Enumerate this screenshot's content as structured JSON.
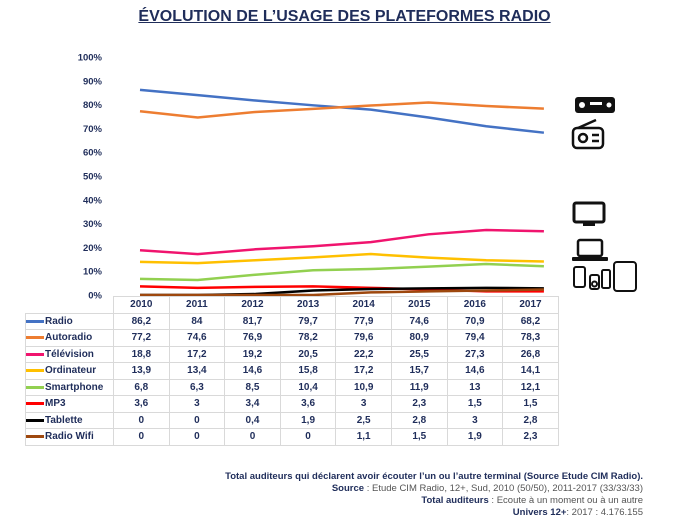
{
  "title": "ÉVOLUTION DE L’USAGE DES PLATEFORMES RADIO",
  "chart_data": {
    "type": "line",
    "title": "ÉVOLUTION DE L’USAGE DES PLATEFORMES RADIO",
    "categories": [
      "2010",
      "2011",
      "2012",
      "2013",
      "2014",
      "2015",
      "2016",
      "2017"
    ],
    "ylim": [
      0,
      100
    ],
    "yticks": [
      "0%",
      "10%",
      "20%",
      "30%",
      "40%",
      "50%",
      "60%",
      "70%",
      "80%",
      "90%",
      "100%"
    ],
    "grid": false,
    "legend": "data-table",
    "series": [
      {
        "name": "Radio",
        "color": "#4472c4",
        "values": [
          86.2,
          84,
          81.7,
          79.7,
          77.9,
          74.6,
          70.9,
          68.2
        ],
        "labels": [
          "86,2",
          "84",
          "81,7",
          "79,7",
          "77,9",
          "74,6",
          "70,9",
          "68,2"
        ]
      },
      {
        "name": "Autoradio",
        "color": "#ed7d31",
        "values": [
          77.2,
          74.6,
          76.9,
          78.2,
          79.6,
          80.9,
          79.4,
          78.3
        ],
        "labels": [
          "77,2",
          "74,6",
          "76,9",
          "78,2",
          "79,6",
          "80,9",
          "79,4",
          "78,3"
        ]
      },
      {
        "name": "Télévision",
        "color": "#f0146e",
        "values": [
          18.8,
          17.2,
          19.2,
          20.5,
          22.2,
          25.5,
          27.3,
          26.8
        ],
        "labels": [
          "18,8",
          "17,2",
          "19,2",
          "20,5",
          "22,2",
          "25,5",
          "27,3",
          "26,8"
        ]
      },
      {
        "name": "Ordinateur",
        "color": "#ffc000",
        "values": [
          13.9,
          13.4,
          14.6,
          15.8,
          17.2,
          15.7,
          14.6,
          14.1
        ],
        "labels": [
          "13,9",
          "13,4",
          "14,6",
          "15,8",
          "17,2",
          "15,7",
          "14,6",
          "14,1"
        ]
      },
      {
        "name": "Smartphone",
        "color": "#92d050",
        "values": [
          6.8,
          6.3,
          8.5,
          10.4,
          10.9,
          11.9,
          13,
          12.1
        ],
        "labels": [
          "6,8",
          "6,3",
          "8,5",
          "10,4",
          "10,9",
          "11,9",
          "13",
          "12,1"
        ]
      },
      {
        "name": "MP3",
        "color": "#ff0000",
        "values": [
          3.6,
          3,
          3.4,
          3.6,
          3,
          2.3,
          1.5,
          1.5
        ],
        "labels": [
          "3,6",
          "3",
          "3,4",
          "3,6",
          "3",
          "2,3",
          "1,5",
          "1,5"
        ]
      },
      {
        "name": "Tablette",
        "color": "#000000",
        "values": [
          0,
          0,
          0.4,
          1.9,
          2.5,
          2.8,
          3,
          2.8
        ],
        "labels": [
          "0",
          "0",
          "0,4",
          "1,9",
          "2,5",
          "2,8",
          "3",
          "2,8"
        ]
      },
      {
        "name": "Radio Wifi",
        "color": "#9e480e",
        "values": [
          0,
          0,
          0,
          0,
          1.1,
          1.5,
          1.9,
          2.3
        ],
        "labels": [
          "0",
          "0",
          "0",
          "0",
          "1,1",
          "1,5",
          "1,9",
          "2,3"
        ]
      }
    ]
  },
  "icons": [
    "car-radio-icon",
    "radio-icon",
    "tv-icon",
    "laptop-icon",
    "mobile-devices-icon"
  ],
  "notes": {
    "line1": "Total auditeurs qui déclarent avoir écouter l’un ou l’autre terminal (Source Etude CIM Radio).",
    "source_label": "Source",
    "source_text": " : Etude CIM Radio, 12+, Sud, 2010 (50/50), 2011-2017 (33/33/33)",
    "total_label": "Total auditeurs",
    "total_text": " : Ecoute à un moment ou à un autre",
    "univers_label": "Univers 12+",
    "univers_text": ":  2017 : 4.176.155"
  }
}
